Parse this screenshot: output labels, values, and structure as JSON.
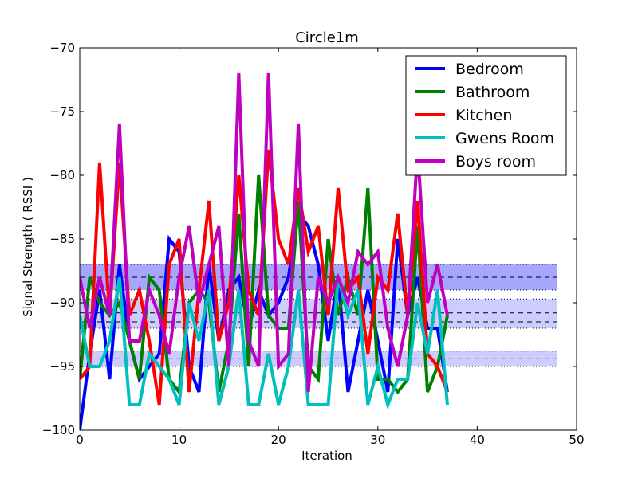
{
  "chart_data": {
    "type": "line",
    "title": "Circle1m",
    "xlabel": "Iteration",
    "ylabel": "Signal Strength  ( RSSI )",
    "xlim": [
      0,
      50
    ],
    "ylim": [
      -100,
      -70
    ],
    "xticks": [
      0,
      10,
      20,
      30,
      40,
      50
    ],
    "yticks": [
      -100,
      -95,
      -90,
      -85,
      -80,
      -75,
      -70
    ],
    "tick_labels_x": [
      "0",
      "10",
      "20",
      "30",
      "40",
      "50"
    ],
    "tick_labels_y": [
      "−100",
      "−95",
      "−90",
      "−85",
      "−80",
      "−75",
      "−70"
    ],
    "grid": false,
    "legend_position": "top-right",
    "x": [
      0,
      1,
      2,
      3,
      4,
      5,
      6,
      7,
      8,
      9,
      10,
      11,
      12,
      13,
      14,
      15,
      16,
      17,
      18,
      19,
      20,
      21,
      22,
      23,
      24,
      25,
      26,
      27,
      28,
      29,
      30,
      31,
      32,
      33,
      34,
      35,
      36,
      37
    ],
    "series": [
      {
        "name": "Bedroom",
        "color": "#0000ff",
        "values": [
          -100,
          -94,
          -89,
          -96,
          -87,
          -93,
          -96,
          -95,
          -94,
          -85,
          -86,
          -95,
          -97,
          -87,
          -93,
          -89,
          -88,
          -92,
          -89,
          -91,
          -90,
          -88,
          -83,
          -84,
          -87,
          -93,
          -88,
          -97,
          -93,
          -89,
          -93,
          -97,
          -85,
          -91,
          -88,
          -92,
          -92,
          -97
        ]
      },
      {
        "name": "Bathroom",
        "color": "#008000",
        "values": [
          -96,
          -88,
          -90,
          -91,
          -90,
          -93,
          -96,
          -88,
          -89,
          -96,
          -97,
          -90,
          -89,
          -90,
          -97,
          -93,
          -83,
          -95,
          -80,
          -91,
          -92,
          -92,
          -82,
          -95,
          -96,
          -85,
          -91,
          -88,
          -91,
          -81,
          -96,
          -96,
          -97,
          -96,
          -84,
          -97,
          -95,
          -91
        ]
      },
      {
        "name": "Kitchen",
        "color": "#ff0000",
        "values": [
          -96,
          -95,
          -79,
          -91,
          -79,
          -91,
          -89,
          -93,
          -98,
          -87,
          -85,
          -97,
          -89,
          -82,
          -93,
          -90,
          -80,
          -89,
          -91,
          -78,
          -85,
          -87,
          -81,
          -86,
          -84,
          -91,
          -81,
          -89,
          -88,
          -94,
          -88,
          -89,
          -83,
          -91,
          -82,
          -94,
          -95,
          -97
        ]
      },
      {
        "name": "Gwens Room",
        "color": "#00bfbf",
        "values": [
          -91,
          -95,
          -95,
          -93,
          -88,
          -98,
          -98,
          -94,
          -95,
          -96,
          -98,
          -90,
          -93,
          -89,
          -98,
          -95,
          -89,
          -98,
          -98,
          -94,
          -98,
          -95,
          -89,
          -98,
          -98,
          -98,
          -88,
          -91,
          -89,
          -98,
          -95,
          -98,
          -96,
          -96,
          -90,
          -94,
          -89,
          -98
        ]
      },
      {
        "name": "Boys room",
        "color": "#bf00bf",
        "values": [
          -88,
          -92,
          -88,
          -91,
          -76,
          -93,
          -93,
          -89,
          -91,
          -94,
          -88,
          -84,
          -90,
          -87,
          -84,
          -95,
          -72,
          -93,
          -95,
          -72,
          -95,
          -94,
          -76,
          -97,
          -88,
          -90,
          -88,
          -90,
          -86,
          -87,
          -86,
          -92,
          -95,
          -91,
          -78,
          -90,
          -87,
          -91
        ]
      }
    ],
    "bands": [
      {
        "y_low": -89,
        "y_high": -87,
        "color": "#8080ff",
        "opacity": 0.7,
        "dashed_lines": [
          -87,
          -88,
          -89
        ],
        "line_styles": [
          "dotted",
          "dashed",
          "dotted"
        ]
      },
      {
        "y_low": -92,
        "y_high": -89.7,
        "color": "#8080ff",
        "opacity": 0.4,
        "dashed_lines": [
          -89.7,
          -90.8,
          -91.5,
          -92
        ],
        "line_styles": [
          "dotted",
          "dashed",
          "dashed",
          "dotted"
        ]
      },
      {
        "y_low": -95,
        "y_high": -93.8,
        "color": "#8080ff",
        "opacity": 0.4,
        "dashed_lines": [
          -93.8,
          -94.4,
          -95
        ],
        "line_styles": [
          "dotted",
          "dashed",
          "dotted"
        ]
      }
    ],
    "band_xlim": [
      0,
      48
    ]
  }
}
